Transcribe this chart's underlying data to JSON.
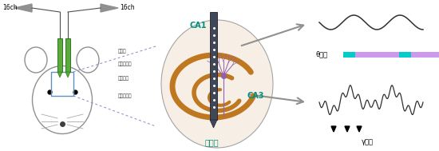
{
  "bg_color": "#ffffff",
  "fig_width": 5.5,
  "fig_height": 1.89,
  "dpi": 100,
  "labels": {
    "ch_left": "16ch",
    "ch_right": "16ch",
    "theta_period": "θ周期",
    "gamma_vibration": "γ振動",
    "CA1": "CA1",
    "CA3": "CA3",
    "dentate": "歯状回",
    "layers": [
      "上昇層",
      "錐体細胞層",
      "放線状層",
      "網状分子層"
    ]
  },
  "colors": {
    "mouse_outline": "#909090",
    "electrode_green": "#5aaa3c",
    "electrode_dark": "#2a7a1a",
    "hippocampus_outline": "#c07820",
    "hippocampus_fill": "#f5ece0",
    "CA1_text": "#009080",
    "CA3_text": "#009080",
    "dentate_text": "#009080",
    "arrow_fill": "#909090",
    "theta_bar_purple": "#cc99ee",
    "theta_bar_cyan": "#00cccc",
    "wave_color": "#303030",
    "neuron_color": "#9060b0",
    "probe_color": "#404858",
    "dashed_line": "#8888cc",
    "box_color": "#6090c0"
  }
}
